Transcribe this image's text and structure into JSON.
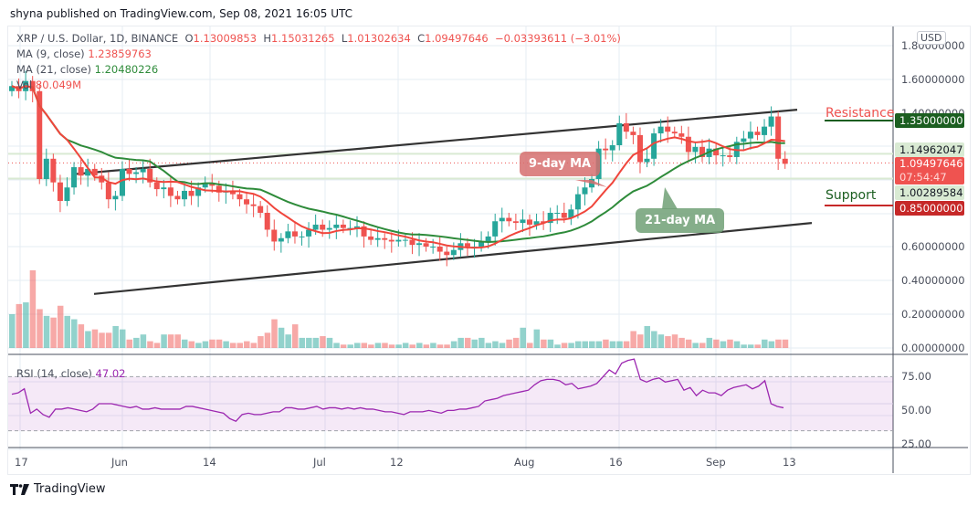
{
  "published": "shyna published on TradingView.com, Sep 08, 2021 16:05 UTC",
  "header": {
    "symbol": "XRP / U.S. Dollar, 1D, BINANCE",
    "open_label": "O",
    "open": "1.13009853",
    "high_label": "H",
    "high": "1.15031265",
    "low_label": "L",
    "low": "1.01302634",
    "close_label": "C",
    "close": "1.09497646",
    "change": "−0.03393611 (−3.01%)"
  },
  "indicators": {
    "ma9_label": "MA (9, close)",
    "ma9_value": "1.23859763",
    "ma21_label": "MA (21, close)",
    "ma21_value": "1.20480226",
    "vol_label": "Vol",
    "vol_value": "80.049M",
    "rsi_label": "RSI (14, close)",
    "rsi_value": "47.02"
  },
  "price_axis": {
    "currency": "USD",
    "ticks": [
      "1.80000000",
      "1.60000000",
      "1.40000000",
      "0.60000000",
      "0.40000000",
      "0.20000000",
      "0.00000000"
    ],
    "tags": {
      "resistance": "1.35000000",
      "upper_ref": "1.14962047",
      "last_price": "1.09497646",
      "countdown": "07:54:47",
      "lower_ref": "1.00289584",
      "support": "0.85000000"
    }
  },
  "rsi_axis": {
    "ticks": [
      "75.00",
      "50.00",
      "25.00"
    ]
  },
  "time_axis": {
    "ticks": [
      "17",
      "Jun",
      "14",
      "Jul",
      "12",
      "Aug",
      "16",
      "Sep",
      "13"
    ]
  },
  "annotations": {
    "resistance": "Resistance",
    "support": "Support",
    "ma9_callout": "9-day MA",
    "ma21_callout": "21-day MA"
  },
  "colors": {
    "up": "#26a69a",
    "down": "#ef5350",
    "ma9": "#f0463c",
    "ma21": "#2e8b3a",
    "resistance_line": "#1b5e20",
    "support_line": "#c62828",
    "rsi": "#9c27b0"
  },
  "branding": {
    "logo_text": "TradingView"
  },
  "chart_data": {
    "type": "candlestick",
    "title": "XRP / U.S. Dollar, 1D, BINANCE",
    "xlabel": "",
    "ylabel": "USD",
    "ylim": [
      0,
      1.85
    ],
    "x_range": [
      "2021-05-16",
      "2021-09-08"
    ],
    "ohlc_last": {
      "open": 1.13009853,
      "high": 1.15031265,
      "low": 1.01302634,
      "close": 1.09497646
    },
    "ma9_last": 1.23859763,
    "ma21_last": 1.20480226,
    "resistance": 1.35,
    "support": 0.85,
    "horizontal_refs": [
      1.14962047,
      1.00289584
    ],
    "channel": {
      "upper": [
        [
          "2021-05-26",
          1.03
        ],
        [
          "2021-09-08",
          1.41
        ]
      ],
      "lower": [
        [
          "2021-05-27",
          0.32
        ],
        [
          "2021-09-13",
          0.74
        ]
      ]
    },
    "closes_approx": [
      1.55,
      1.52,
      1.58,
      1.52,
      1.0,
      1.12,
      0.98,
      0.87,
      0.95,
      1.07,
      1.02,
      1.06,
      1.02,
      0.98,
      0.88,
      0.9,
      1.06,
      1.03,
      1.04,
      1.06,
      0.98,
      0.94,
      0.95,
      0.9,
      0.88,
      0.93,
      0.9,
      0.95,
      0.97,
      0.96,
      0.92,
      0.93,
      0.91,
      0.88,
      0.85,
      0.84,
      0.8,
      0.7,
      0.63,
      0.65,
      0.69,
      0.66,
      0.66,
      0.7,
      0.73,
      0.7,
      0.71,
      0.73,
      0.71,
      0.71,
      0.72,
      0.66,
      0.64,
      0.65,
      0.64,
      0.63,
      0.64,
      0.64,
      0.61,
      0.62,
      0.6,
      0.6,
      0.57,
      0.55,
      0.58,
      0.62,
      0.6,
      0.6,
      0.63,
      0.66,
      0.75,
      0.77,
      0.75,
      0.74,
      0.76,
      0.73,
      0.75,
      0.74,
      0.8,
      0.8,
      0.77,
      0.82,
      0.91,
      0.95,
      1.0,
      1.18,
      1.17,
      1.2,
      1.33,
      1.28,
      1.26,
      1.1,
      1.12,
      1.27,
      1.31,
      1.28,
      1.27,
      1.25,
      1.16,
      1.19,
      1.13,
      1.18,
      1.14,
      1.14,
      1.13,
      1.22,
      1.24,
      1.28,
      1.26,
      1.31,
      1.37,
      1.12,
      1.09
    ],
    "volume_axis_ticks": [
      0.0,
      0.2,
      0.4
    ],
    "rsi": {
      "period": 14,
      "last": 47.02,
      "bands": [
        30,
        70
      ],
      "ticks": [
        25,
        50,
        75
      ],
      "values_approx": [
        57,
        58,
        61,
        43,
        46,
        42,
        40,
        46,
        46,
        47,
        46,
        45,
        44,
        46,
        50,
        50,
        50,
        49,
        48,
        47,
        48,
        46,
        46,
        47,
        46,
        46,
        46,
        46,
        48,
        48,
        47,
        46,
        45,
        44,
        43,
        39,
        37,
        42,
        43,
        42,
        42,
        43,
        44,
        44,
        47,
        47,
        46,
        46,
        47,
        48,
        46,
        47,
        47,
        46,
        47,
        46,
        47,
        46,
        46,
        45,
        44,
        44,
        43,
        42,
        44,
        44,
        44,
        45,
        44,
        43,
        45,
        45,
        46,
        46,
        47,
        48,
        52,
        53,
        54,
        56,
        57,
        58,
        59,
        60,
        64,
        67,
        68,
        68,
        67,
        64,
        65,
        61,
        62,
        63,
        65,
        70,
        75,
        72,
        80,
        82,
        83,
        68,
        66,
        68,
        69,
        66,
        67,
        68,
        60,
        62,
        56,
        60,
        58,
        58,
        56,
        60,
        62,
        63,
        64,
        61,
        63,
        67,
        50,
        48,
        47
      ]
    }
  }
}
